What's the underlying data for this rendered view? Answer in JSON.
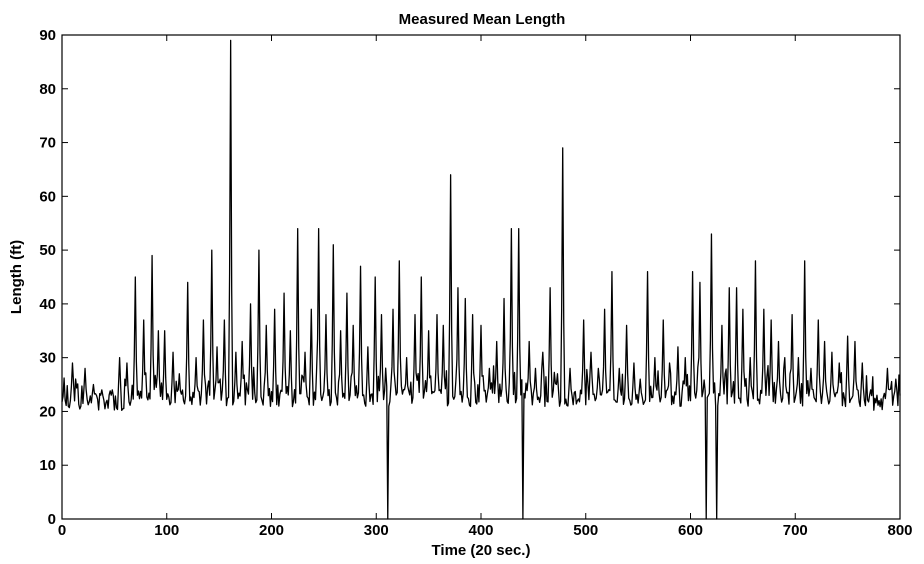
{
  "chart_data": {
    "type": "line",
    "title": "Measured Mean Length",
    "xlabel": "Time (20 sec.)",
    "ylabel": "Length (ft)",
    "xlim": [
      0,
      800
    ],
    "ylim": [
      0,
      90
    ],
    "xticks": [
      0,
      100,
      200,
      300,
      400,
      500,
      600,
      700,
      800
    ],
    "yticks": [
      0,
      10,
      20,
      30,
      40,
      50,
      60,
      70,
      80,
      90
    ],
    "grid": false,
    "color": "#000000",
    "baseline": 22.5,
    "spikes": [
      [
        10,
        29
      ],
      [
        22,
        28
      ],
      [
        30,
        25
      ],
      [
        38,
        24
      ],
      [
        48,
        24
      ],
      [
        55,
        30
      ],
      [
        62,
        29
      ],
      [
        70,
        45
      ],
      [
        78,
        37
      ],
      [
        86,
        49
      ],
      [
        92,
        35
      ],
      [
        98,
        35
      ],
      [
        106,
        31
      ],
      [
        112,
        27
      ],
      [
        120,
        44
      ],
      [
        128,
        30
      ],
      [
        135,
        37
      ],
      [
        143,
        50
      ],
      [
        148,
        32
      ],
      [
        155,
        37
      ],
      [
        161,
        89
      ],
      [
        166,
        31
      ],
      [
        172,
        33
      ],
      [
        180,
        40
      ],
      [
        188,
        50
      ],
      [
        195,
        36
      ],
      [
        203,
        39
      ],
      [
        212,
        42
      ],
      [
        218,
        35
      ],
      [
        225,
        54
      ],
      [
        232,
        31
      ],
      [
        238,
        39
      ],
      [
        245,
        54
      ],
      [
        252,
        38
      ],
      [
        259,
        51
      ],
      [
        266,
        35
      ],
      [
        272,
        42
      ],
      [
        278,
        36
      ],
      [
        285,
        47
      ],
      [
        292,
        32
      ],
      [
        299,
        45
      ],
      [
        305,
        38
      ],
      [
        311,
        0
      ],
      [
        316,
        39
      ],
      [
        322,
        48
      ],
      [
        329,
        30
      ],
      [
        337,
        38
      ],
      [
        343,
        45
      ],
      [
        350,
        35
      ],
      [
        358,
        38
      ],
      [
        364,
        36
      ],
      [
        371,
        64
      ],
      [
        378,
        43
      ],
      [
        385,
        41
      ],
      [
        392,
        38
      ],
      [
        400,
        36
      ],
      [
        408,
        28
      ],
      [
        415,
        33
      ],
      [
        422,
        41
      ],
      [
        429,
        54
      ],
      [
        436,
        54
      ],
      [
        440,
        0
      ],
      [
        446,
        33
      ],
      [
        452,
        28
      ],
      [
        459,
        31
      ],
      [
        466,
        43
      ],
      [
        473,
        27
      ],
      [
        478,
        69
      ],
      [
        485,
        28
      ],
      [
        492,
        22
      ],
      [
        498,
        37
      ],
      [
        505,
        31
      ],
      [
        512,
        28
      ],
      [
        518,
        39
      ],
      [
        525,
        46
      ],
      [
        532,
        28
      ],
      [
        539,
        36
      ],
      [
        546,
        29
      ],
      [
        552,
        26
      ],
      [
        559,
        46
      ],
      [
        566,
        30
      ],
      [
        574,
        37
      ],
      [
        580,
        29
      ],
      [
        588,
        32
      ],
      [
        595,
        30
      ],
      [
        602,
        46
      ],
      [
        609,
        44
      ],
      [
        615,
        0
      ],
      [
        620,
        53
      ],
      [
        625,
        0
      ],
      [
        630,
        36
      ],
      [
        637,
        43
      ],
      [
        644,
        43
      ],
      [
        650,
        39
      ],
      [
        657,
        30
      ],
      [
        662,
        48
      ],
      [
        670,
        39
      ],
      [
        677,
        37
      ],
      [
        684,
        33
      ],
      [
        690,
        30
      ],
      [
        697,
        38
      ],
      [
        703,
        30
      ],
      [
        709,
        48
      ],
      [
        715,
        28
      ],
      [
        722,
        37
      ],
      [
        728,
        33
      ],
      [
        735,
        31
      ],
      [
        742,
        29
      ],
      [
        750,
        34
      ],
      [
        757,
        33
      ],
      [
        764,
        29
      ],
      [
        772,
        24
      ],
      [
        780,
        22
      ],
      [
        788,
        28
      ],
      [
        796,
        26
      ]
    ]
  }
}
